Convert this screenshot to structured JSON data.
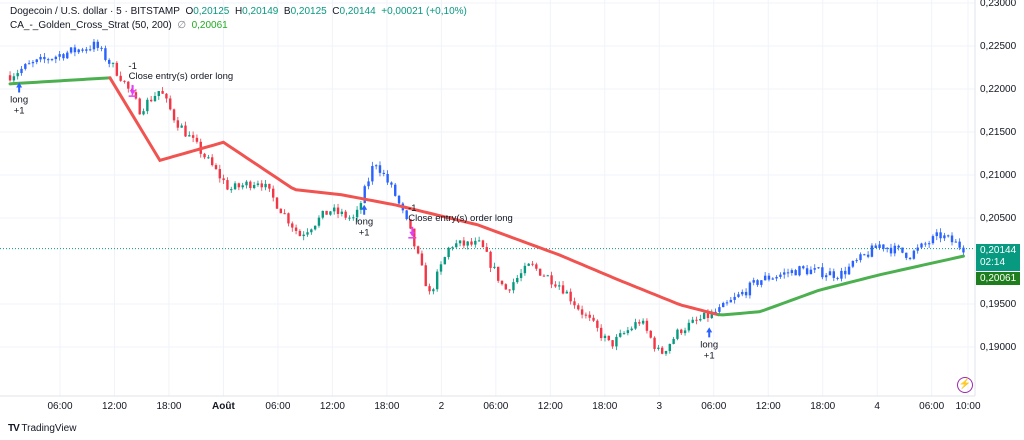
{
  "legend": {
    "symbol": "Dogecoin / U.S. dollar · 5 · BITSTAMP",
    "o_label": "O",
    "o": "0,20125",
    "h_label": "H",
    "h": "0,20149",
    "b_label": "B",
    "b": "0,20125",
    "c_label": "C",
    "c": "0,20144",
    "change": "+0,00021 (+0,10%)",
    "indicator": "CA_-_Golden_Cross_Strat (50, 200)",
    "indicator_icon": "hidden-eye-icon",
    "indicator_value": "0,20061"
  },
  "price_tags": {
    "last": "0,20144",
    "countdown": "02:14",
    "ma": "0,20061"
  },
  "colors": {
    "up": "#089981",
    "down": "#f23645",
    "long": "#2962ff",
    "ma_bull": "#4caf50",
    "ma_bear": "#f05350",
    "exit": "#e040fb"
  },
  "annotations": {
    "long": "long",
    "plus": "+1",
    "minus": "-1",
    "close": "Close entry(s) order long"
  },
  "branding": "TradingView",
  "chart_data": {
    "type": "candlestick",
    "title": "Dogecoin / U.S. dollar · 5 · BITSTAMP",
    "y_ticks": [
      "0,23000",
      "0,22500",
      "0,22000",
      "0,21500",
      "0,21000",
      "0,20500",
      "0,19500",
      "0,19000"
    ],
    "y_tick_values": [
      0.23,
      0.225,
      0.22,
      0.215,
      0.21,
      0.205,
      0.195,
      0.19
    ],
    "ylim": [
      0.1855,
      0.2297
    ],
    "x_ticks": [
      {
        "h": 6,
        "label": "06:00"
      },
      {
        "h": 12,
        "label": "12:00"
      },
      {
        "h": 18,
        "label": "18:00"
      },
      {
        "h": 24,
        "label": "Août",
        "bold": true
      },
      {
        "h": 30,
        "label": "06:00"
      },
      {
        "h": 36,
        "label": "12:00"
      },
      {
        "h": 42,
        "label": "18:00"
      },
      {
        "h": 48,
        "label": "2"
      },
      {
        "h": 54,
        "label": "06:00"
      },
      {
        "h": 60,
        "label": "12:00"
      },
      {
        "h": 66,
        "label": "18:00"
      },
      {
        "h": 72,
        "label": "3"
      },
      {
        "h": 78,
        "label": "06:00"
      },
      {
        "h": 84,
        "label": "12:00"
      },
      {
        "h": 90,
        "label": "18:00"
      },
      {
        "h": 96,
        "label": "4"
      },
      {
        "h": 102,
        "label": "06:00"
      },
      {
        "h": 106,
        "label": "10:00"
      }
    ],
    "price_path_hours_price": [
      [
        0.5,
        0.2216
      ],
      [
        2.7,
        0.2228
      ],
      [
        6,
        0.224
      ],
      [
        9.9,
        0.2251
      ],
      [
        12.6,
        0.2216
      ],
      [
        14.8,
        0.2176
      ],
      [
        17,
        0.2199
      ],
      [
        18.7,
        0.2164
      ],
      [
        21.4,
        0.2129
      ],
      [
        24.7,
        0.2083
      ],
      [
        28,
        0.2094
      ],
      [
        32.4,
        0.203
      ],
      [
        35.7,
        0.2059
      ],
      [
        38.5,
        0.2048
      ],
      [
        40.7,
        0.2117
      ],
      [
        42.9,
        0.2077
      ],
      [
        44.5,
        0.2036
      ],
      [
        46.7,
        0.1961
      ],
      [
        49,
        0.2019
      ],
      [
        52.3,
        0.2019
      ],
      [
        55,
        0.1966
      ],
      [
        57.8,
        0.1995
      ],
      [
        61.1,
        0.1972
      ],
      [
        63.3,
        0.1943
      ],
      [
        66.6,
        0.1902
      ],
      [
        69.9,
        0.1931
      ],
      [
        72.1,
        0.1891
      ],
      [
        74.3,
        0.192
      ],
      [
        78.7,
        0.1943
      ],
      [
        83.1,
        0.1978
      ],
      [
        87.5,
        0.199
      ],
      [
        91.9,
        0.1984
      ],
      [
        96.3,
        0.2019
      ],
      [
        99.6,
        0.2007
      ],
      [
        102.9,
        0.203
      ],
      [
        105.7,
        0.20144
      ]
    ],
    "ma_series": [
      [
        0.5,
        0.2206
      ],
      [
        11.5,
        0.2213
      ],
      [
        17,
        0.2117
      ],
      [
        24,
        0.2138
      ],
      [
        31.8,
        0.2083
      ],
      [
        37,
        0.2077
      ],
      [
        43,
        0.2065
      ],
      [
        52,
        0.2042
      ],
      [
        61,
        0.2007
      ],
      [
        67.5,
        0.1978
      ],
      [
        74.3,
        0.1949
      ],
      [
        78.7,
        0.1937
      ],
      [
        83.1,
        0.1941
      ],
      [
        89.6,
        0.1966
      ],
      [
        96.3,
        0.1984
      ],
      [
        105.7,
        0.20061
      ]
    ],
    "ma_bear_range_hours": [
      11.5,
      78.7
    ],
    "long_ranges_hours": [
      [
        1.5,
        11.5
      ],
      [
        39.5,
        44.5
      ],
      [
        78,
        106
      ]
    ],
    "signals": [
      {
        "type": "entry",
        "h": 1.5
      },
      {
        "type": "exit",
        "h": 14
      },
      {
        "type": "entry",
        "h": 39.5
      },
      {
        "type": "exit",
        "h": 44.8
      },
      {
        "type": "entry",
        "h": 77.5
      }
    ]
  }
}
